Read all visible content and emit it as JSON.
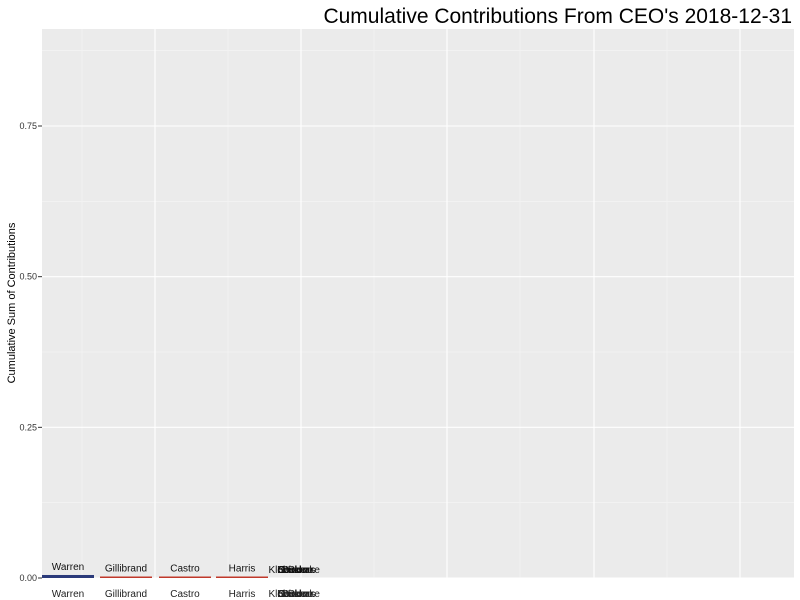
{
  "chart_data": {
    "type": "bar",
    "title": "Cumulative Contributions From  CEO's  2018-12-31",
    "xlabel": "",
    "ylabel": "Cumulative Sum of Contributions",
    "ylim": [
      0,
      0.9
    ],
    "yticks": [
      "0.00",
      "0.25",
      "0.50",
      "0.75"
    ],
    "ytick_values": [
      0,
      0.25,
      0.5,
      0.75
    ],
    "grid": true,
    "legend": "none",
    "categories": [
      "Warren",
      "Gillibrand",
      "Castro",
      "Harris",
      "Klobuchar",
      "Booker",
      "Biden",
      "Sanders",
      "O'Rourke"
    ],
    "values": [
      0.005,
      0.002,
      0.002,
      0.002,
      0,
      0,
      0,
      0,
      0
    ],
    "colors": [
      "#2b3a7a",
      "#c0392b",
      "#c0392b",
      "#c0392b",
      "#888888",
      "#888888",
      "#888888",
      "#888888",
      "#888888"
    ]
  }
}
